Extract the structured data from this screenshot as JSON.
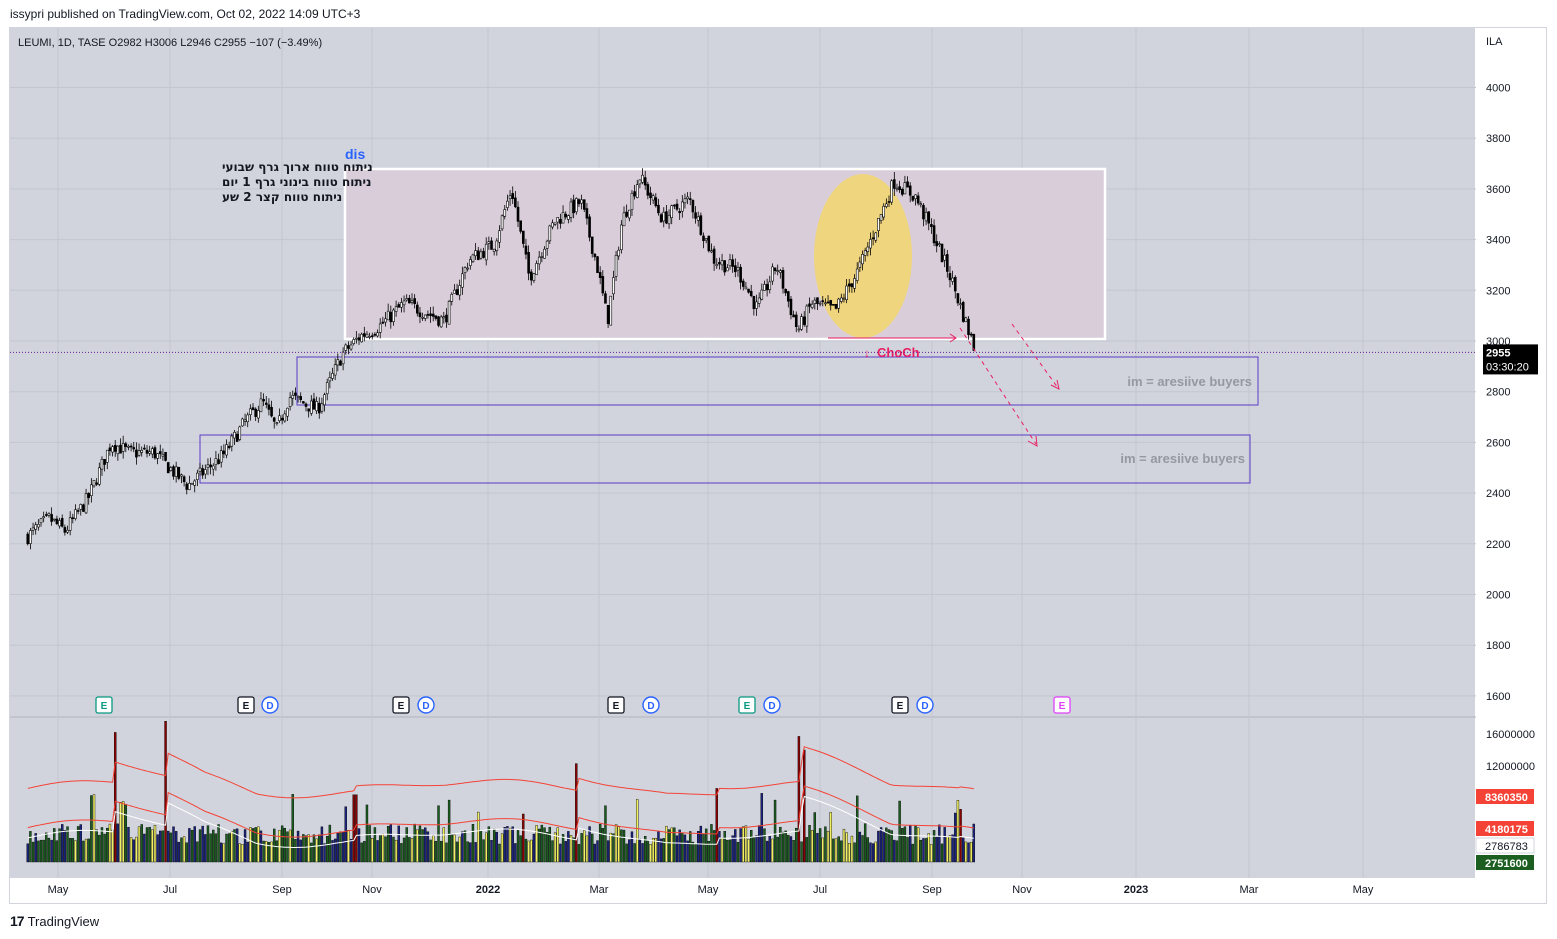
{
  "publisher_line": "issypri published on TradingView.com, Oct 02, 2022 14:09 UTC+3",
  "footer_brand": "TradingView",
  "colors": {
    "chart_bg": "#d1d4dc",
    "range_box": "#ffffff",
    "range_fill": "#d8cdd9",
    "ob_border": "#5b3cc4",
    "highlight": "#f5d66e",
    "choch": "#e91e63",
    "price_tag": "#000000",
    "vol_red": "#8b0000",
    "vol_green": "#1b5e20",
    "vol_yellow": "#f0f060",
    "vol_blue": "#1a237e",
    "ma_red": "#f44336"
  },
  "chart_data": {
    "type": "candlestick",
    "symbol_header": "LEUMI, 1D, TASE",
    "ohlc_header": {
      "open": "O2982",
      "high": "H3006",
      "low": "L2946",
      "close": "C2955",
      "change": "−107 (−3.49%)"
    },
    "currency": "ILA",
    "y_axis": {
      "ticks": [
        4000,
        3800,
        3600,
        3400,
        3200,
        3000,
        2800,
        2600,
        2400,
        2200,
        2000,
        1800,
        1600
      ],
      "ylim": [
        1530,
        4160
      ]
    },
    "x_axis": {
      "ticks": [
        "May",
        "Jul",
        "Sep",
        "Nov",
        "2022",
        "Mar",
        "May",
        "Jul",
        "Sep",
        "Nov",
        "2023",
        "Mar",
        "May"
      ]
    },
    "last_price": {
      "value": "2955",
      "countdown": "03:30:20",
      "y": 2955
    },
    "price_path": [
      [
        "2021-04-14",
        2230
      ],
      [
        "2021-04-26",
        2300
      ],
      [
        "2021-05-05",
        2250
      ],
      [
        "2021-05-18",
        2380
      ],
      [
        "2021-05-31",
        2600
      ],
      [
        "2021-06-10",
        2560
      ],
      [
        "2021-06-24",
        2560
      ],
      [
        "2021-07-07",
        2470
      ],
      [
        "2021-07-13",
        2430
      ],
      [
        "2021-08-02",
        2550
      ],
      [
        "2021-08-14",
        2680
      ],
      [
        "2021-08-24",
        2760
      ],
      [
        "2021-09-01",
        2650
      ],
      [
        "2021-09-08",
        2780
      ],
      [
        "2021-09-24",
        2730
      ],
      [
        "2021-10-08",
        2950
      ],
      [
        "2021-10-18",
        3020
      ],
      [
        "2021-10-29",
        3060
      ],
      [
        "2021-11-12",
        3150
      ],
      [
        "2021-12-04",
        3080
      ],
      [
        "2021-12-18",
        3320
      ],
      [
        "2022-01-01",
        3380
      ],
      [
        "2022-01-11",
        3600
      ],
      [
        "2022-01-21",
        3250
      ],
      [
        "2022-02-04",
        3470
      ],
      [
        "2022-02-19",
        3550
      ],
      [
        "2022-02-28",
        3300
      ],
      [
        "2022-03-06",
        3080
      ],
      [
        "2022-03-14",
        3470
      ],
      [
        "2022-03-24",
        3650
      ],
      [
        "2022-04-06",
        3480
      ],
      [
        "2022-04-21",
        3560
      ],
      [
        "2022-05-05",
        3320
      ],
      [
        "2022-05-18",
        3280
      ],
      [
        "2022-05-29",
        3130
      ],
      [
        "2022-06-09",
        3300
      ],
      [
        "2022-06-21",
        3040
      ],
      [
        "2022-06-29",
        3150
      ],
      [
        "2022-07-12",
        3120
      ],
      [
        "2022-07-25",
        3280
      ],
      [
        "2022-08-04",
        3450
      ],
      [
        "2022-08-14",
        3630
      ],
      [
        "2022-08-26",
        3570
      ],
      [
        "2022-09-05",
        3420
      ],
      [
        "2022-09-15",
        3250
      ],
      [
        "2022-09-24",
        3060
      ],
      [
        "2022-09-29",
        2955
      ]
    ],
    "annotations": {
      "range_label": "dis",
      "choch_label": "ChoCh",
      "zone_label_1": "im = aresiive buyers",
      "zone_label_2": "im = aresiive buyers",
      "notes": [
        "ניתוח טווח ארוך גרף שבועי",
        "ניתוח טווח בינוני גרף 1 יום",
        "ניתוח טווח קצר 2 שע"
      ],
      "event_markers": [
        "E",
        "E",
        "D",
        "E",
        "D",
        "E",
        "D",
        "E",
        "D",
        "E",
        "D",
        "E"
      ]
    },
    "volume": {
      "y_ticks": [
        "16000000",
        "12000000"
      ],
      "labels": [
        {
          "text": "8360350",
          "color": "#f44336"
        },
        {
          "text": "4180175",
          "color": "#f44336"
        },
        {
          "text": "2786783",
          "color": "#ffffff"
        },
        {
          "text": "2751600",
          "color": "#1b5e20"
        }
      ],
      "spikes": [
        [
          "2021-06-02",
          16200000
        ],
        [
          "2021-07-01",
          17600000
        ],
        [
          "2021-10-15",
          8400000
        ],
        [
          "2022-01-18",
          6000000
        ],
        [
          "2022-02-17",
          12300000
        ],
        [
          "2022-05-07",
          9200000
        ],
        [
          "2022-06-22",
          15700000
        ],
        [
          "2022-06-24",
          14000000
        ],
        [
          "2022-09-20",
          6600000
        ]
      ]
    }
  }
}
